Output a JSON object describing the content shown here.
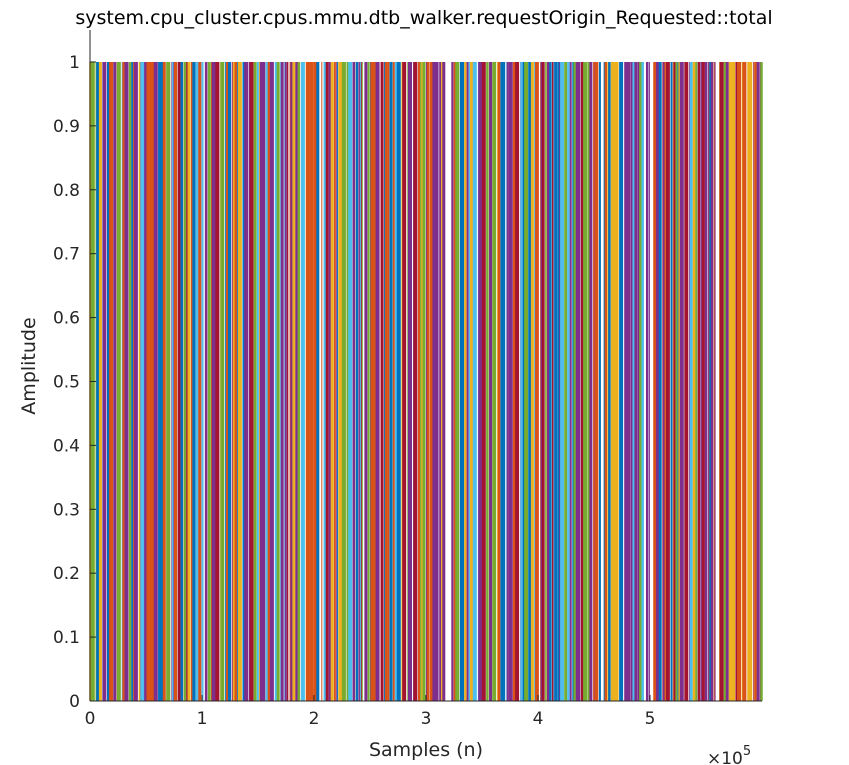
{
  "chart_data": {
    "type": "bar",
    "title": "system.cpu_cluster.cpus.mmu.dtb_walker.requestOrigin_Requested::total",
    "xlabel": "Samples (n)",
    "ylabel": "Amplitude",
    "xlim": [
      0,
      600000
    ],
    "ylim": [
      0,
      1.05
    ],
    "x_ticks": [
      0,
      100000,
      200000,
      300000,
      400000,
      500000
    ],
    "x_tick_labels": [
      "0",
      "1",
      "2",
      "3",
      "4",
      "5"
    ],
    "x_exponent_base": "×10",
    "x_exponent_power": "5",
    "y_ticks": [
      0,
      0.1,
      0.2,
      0.3,
      0.4,
      0.5,
      0.6,
      0.7,
      0.8,
      0.9,
      1
    ],
    "y_tick_labels": [
      "0",
      "0.1",
      "0.2",
      "0.3",
      "0.4",
      "0.5",
      "0.6",
      "0.7",
      "0.8",
      "0.9",
      "1"
    ],
    "grid": false,
    "series_colors": [
      "#7e2f8e",
      "#0072bd",
      "#d95319",
      "#edb120",
      "#77ac30",
      "#4dbeee",
      "#a2142f"
    ],
    "description_of_values": "dense series of spikes with amplitude 0 or 1 across all samples",
    "spike_value": 1
  }
}
